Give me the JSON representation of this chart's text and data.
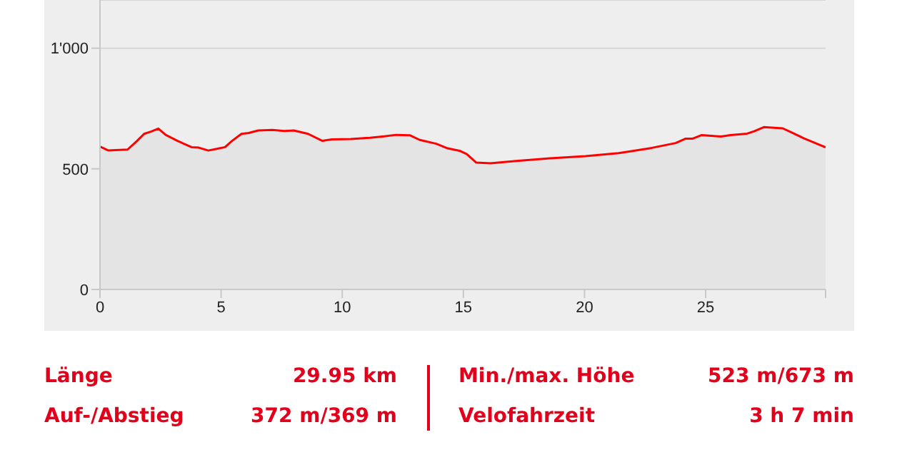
{
  "chart_data": {
    "type": "area",
    "x": [
      0,
      0.35,
      1.14,
      1.53,
      1.82,
      2.12,
      2.41,
      2.71,
      3.2,
      3.78,
      4.08,
      4.47,
      4.86,
      5.16,
      5.45,
      5.84,
      6.14,
      6.53,
      7.12,
      7.61,
      8.0,
      8.59,
      9.18,
      9.57,
      10.35,
      11.14,
      11.73,
      12.22,
      12.8,
      13.2,
      13.88,
      14.35,
      14.84,
      15.14,
      15.53,
      16.12,
      17.1,
      18.47,
      20.04,
      21.41,
      21.8,
      22.78,
      23.76,
      24.16,
      24.45,
      24.84,
      25.63,
      26.02,
      26.71,
      27.0,
      27.4,
      28.18,
      28.57,
      29.06,
      29.95
    ],
    "series": [
      {
        "color": "#ff0000",
        "values": [
          592,
          576,
          580,
          616,
          645,
          655,
          667,
          641,
          616,
          590,
          588,
          576,
          584,
          590,
          616,
          645,
          649,
          659,
          661,
          657,
          659,
          645,
          616,
          622,
          624,
          629,
          635,
          641,
          639,
          620,
          604,
          585,
          575,
          561,
          526,
          523,
          532,
          543,
          553,
          565,
          571,
          587,
          607,
          625,
          625,
          640,
          634,
          640,
          646,
          656,
          673,
          668,
          650,
          626,
          589
        ]
      }
    ],
    "xlim": [
      0,
      29.95
    ],
    "xticks": [
      0,
      5,
      10,
      15,
      20,
      25,
      {
        "value": 29.95,
        "label": null
      }
    ],
    "ylim": [
      0,
      1200
    ],
    "yticks": [
      0,
      500,
      {
        "value": 1000,
        "label": "1'000"
      }
    ],
    "grid": "y",
    "legend": false,
    "annotations": [
      "Länge",
      "29.95 km",
      "Auf-/Abstieg",
      "372 m/369 m",
      "Min./max. Höhe",
      "523 m/673 m",
      "Velofahrzeit",
      "3 h 7 min"
    ]
  }
}
